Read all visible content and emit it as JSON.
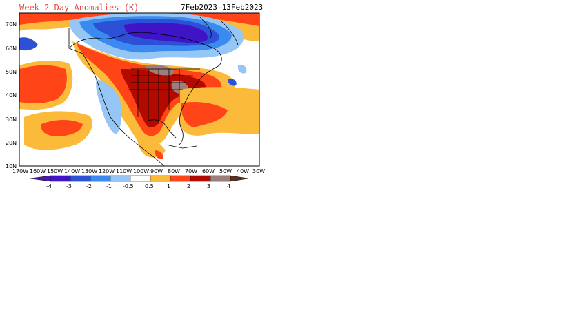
{
  "header": {
    "title": "Week 2 Day Anomalies (K)",
    "date_range": "7Feb2023–13Feb2023"
  },
  "map": {
    "lat_labels": [
      "70N",
      "60N",
      "50N",
      "40N",
      "30N",
      "20N",
      "10N"
    ],
    "lon_labels": [
      "170W",
      "160W",
      "150W",
      "140W",
      "130W",
      "120W",
      "110W",
      "100W",
      "90W",
      "80W",
      "70W",
      "60W",
      "50W",
      "40W",
      "30W"
    ]
  },
  "legend": {
    "labels": [
      "-4",
      "-3",
      "-2",
      "-1",
      "-0.5",
      "0.5",
      "1",
      "2",
      "3",
      "4"
    ],
    "colors": [
      "#3f13c6",
      "#2c50d6",
      "#3a8af0",
      "#95c6f6",
      "#ffffff",
      "#fbba3a",
      "#ff4517",
      "#b30a00",
      "#9e7e7a",
      "#6e3e2e"
    ],
    "low_color": "#4a1aa8",
    "high_color": "#5a3020"
  }
}
